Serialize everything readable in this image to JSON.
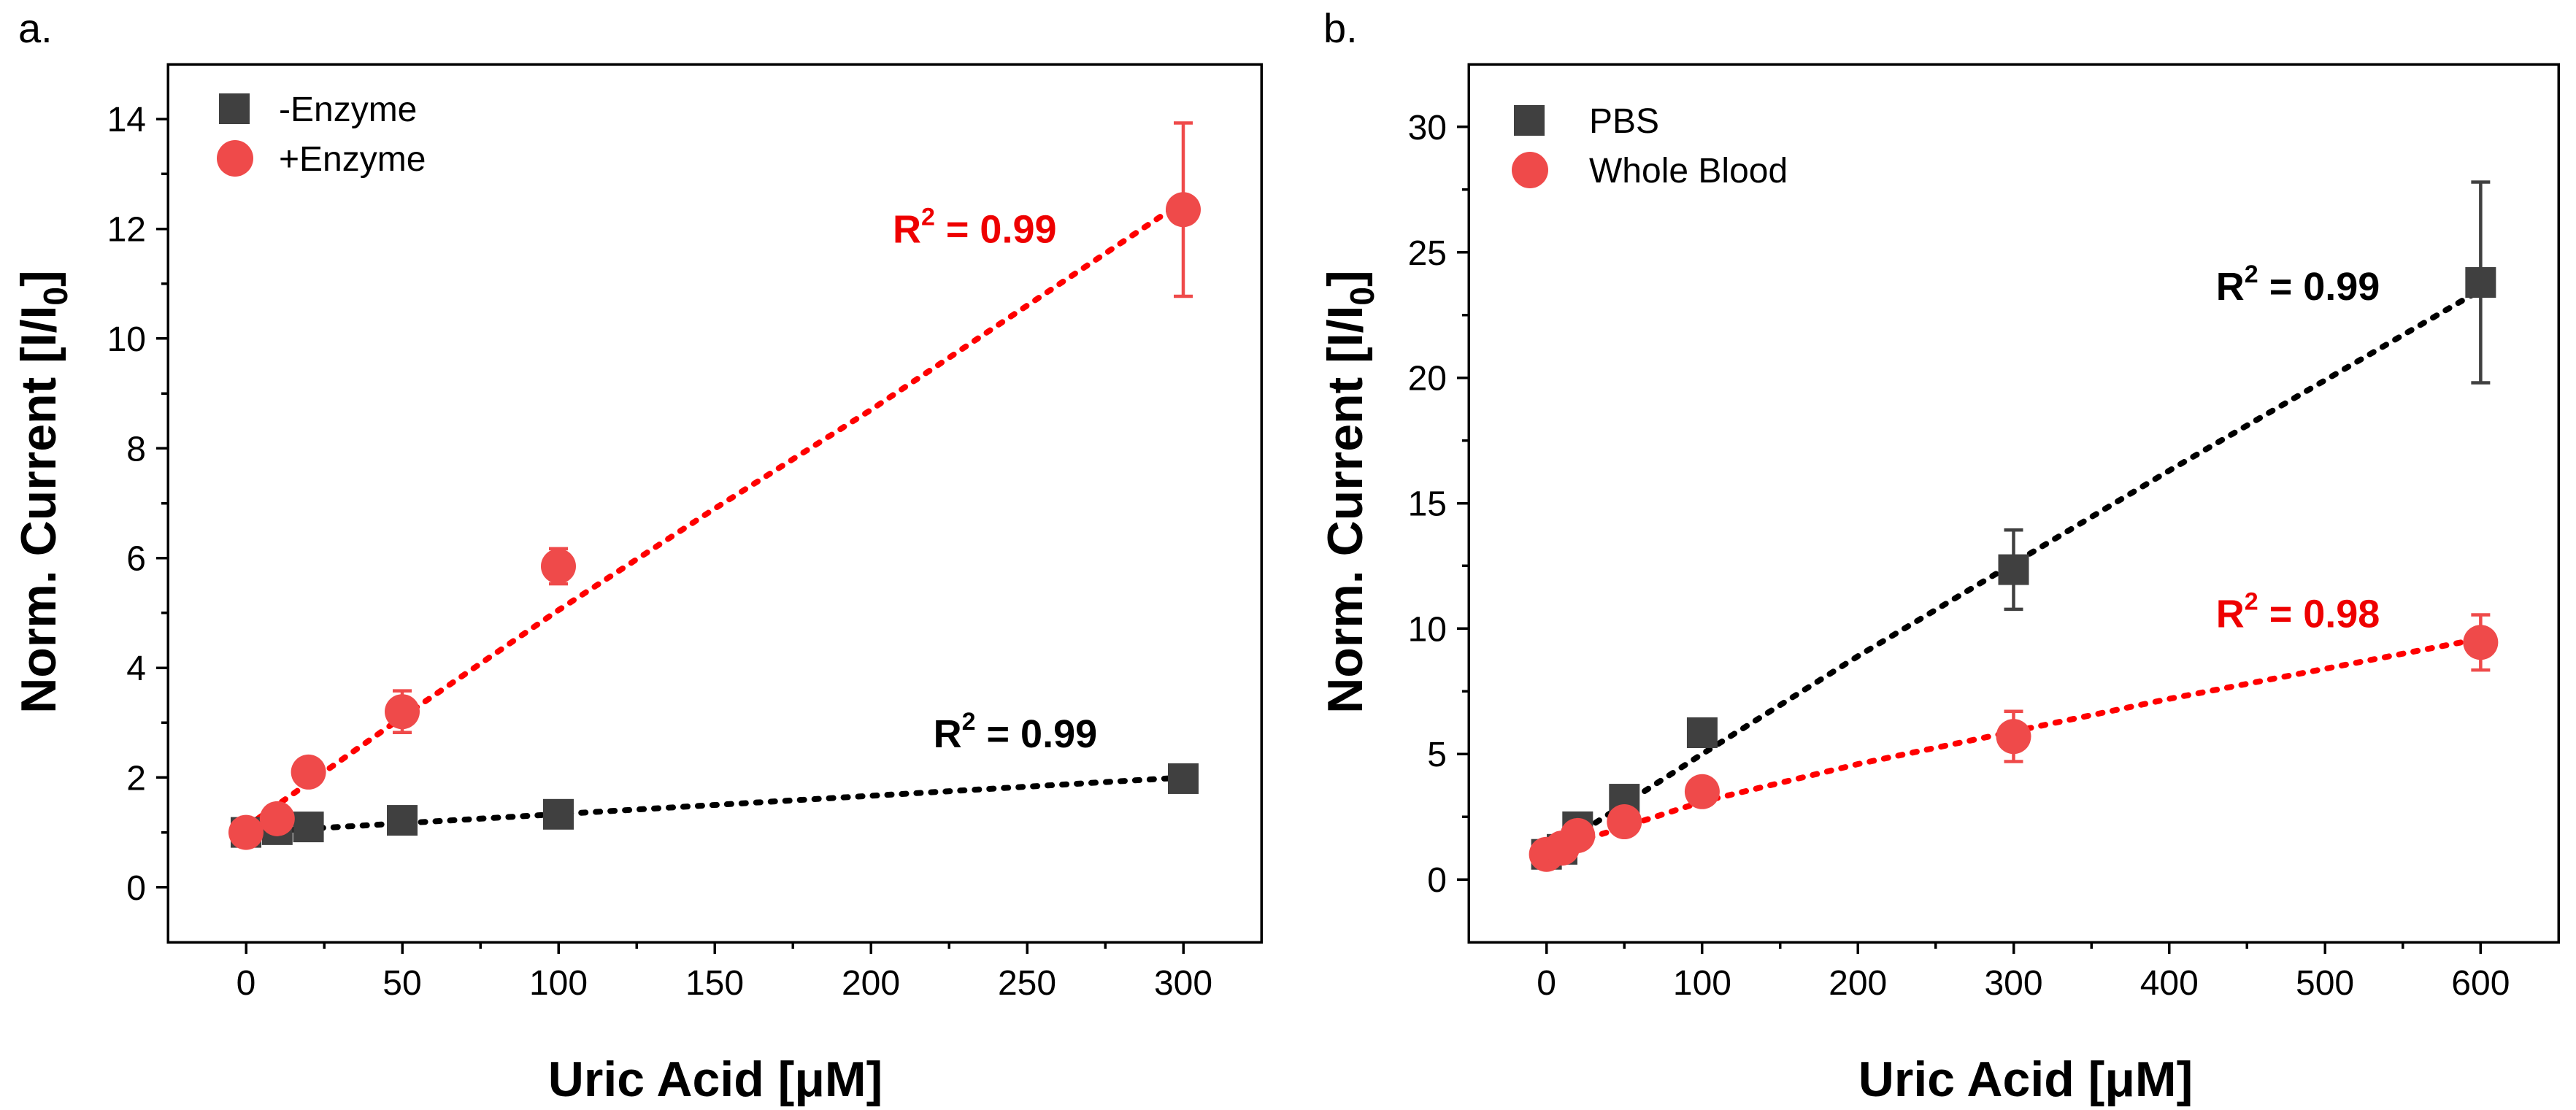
{
  "figure": {
    "colors": {
      "series_dark": "#404040",
      "series_red": "#ef4a4a",
      "fit_dark": "#000000",
      "fit_red": "#ff0000",
      "r2_dark": "#000000",
      "r2_red": "#ee0000"
    }
  },
  "chart_data": [
    {
      "panel_label": "a.",
      "type": "scatter",
      "xlabel": "Uric Acid [μM]",
      "ylabel": "Norm. Current [I/I",
      "ylabel_subscript": "0",
      "ylabel_suffix": "]",
      "xlim": [
        -25,
        325
      ],
      "ylim": [
        -1,
        15
      ],
      "x_ticks": [
        0,
        50,
        100,
        150,
        200,
        250,
        300
      ],
      "x_tick_labels": [
        "0",
        "50",
        "100",
        "150",
        "200",
        "250",
        "300"
      ],
      "y_ticks": [
        0,
        2,
        4,
        6,
        8,
        10,
        12,
        14
      ],
      "y_tick_labels": [
        "0",
        "2",
        "4",
        "6",
        "8",
        "10",
        "12",
        "14"
      ],
      "legend_position": "top-left",
      "series": [
        {
          "name": "-Enzyme",
          "marker": "square",
          "color_key": "series_dark",
          "fit_color_key": "fit_dark",
          "points": [
            {
              "x": 0,
              "y": 1.0,
              "err": 0.06
            },
            {
              "x": 10,
              "y": 1.05,
              "err": 0.08
            },
            {
              "x": 20,
              "y": 1.1,
              "err": 0.08
            },
            {
              "x": 50,
              "y": 1.22,
              "err": 0.1
            },
            {
              "x": 100,
              "y": 1.33,
              "err": 0.12
            },
            {
              "x": 300,
              "y": 1.98,
              "err": 0.15
            }
          ],
          "fit": [
            [
              0,
              1.0
            ],
            [
              300,
              2.0
            ]
          ],
          "r2_base": "R",
          "r2_sup": "2",
          "r2_rest": " = 0.99",
          "r2_at": [
            220,
            2.55
          ]
        },
        {
          "name": "+Enzyme",
          "marker": "circle",
          "color_key": "series_red",
          "fit_color_key": "fit_red",
          "points": [
            {
              "x": 0,
              "y": 1.0,
              "err": 0.1
            },
            {
              "x": 10,
              "y": 1.25,
              "err": 0.18
            },
            {
              "x": 20,
              "y": 2.1,
              "err": 0.22
            },
            {
              "x": 50,
              "y": 3.2,
              "err": 0.38
            },
            {
              "x": 100,
              "y": 5.85,
              "err": 0.32
            },
            {
              "x": 300,
              "y": 12.35,
              "err": 1.58
            }
          ],
          "fit": [
            [
              0,
              1.1
            ],
            [
              50,
              3.1
            ],
            [
              100,
              5.05
            ],
            [
              150,
              6.9
            ],
            [
              200,
              8.7
            ],
            [
              250,
              10.6
            ],
            [
              300,
              12.5
            ]
          ],
          "r2_base": "R",
          "r2_sup": "2",
          "r2_rest": " = 0.99",
          "r2_at": [
            207,
            11.75
          ]
        }
      ]
    },
    {
      "panel_label": "b.",
      "type": "scatter",
      "xlabel": "Uric Acid [μM]",
      "ylabel": "Norm. Current [I/I",
      "ylabel_subscript": "0",
      "ylabel_suffix": "]",
      "xlim": [
        -50,
        650
      ],
      "ylim": [
        -2.5,
        32.5
      ],
      "x_ticks": [
        0,
        100,
        200,
        300,
        400,
        500,
        600
      ],
      "x_tick_labels": [
        "0",
        "100",
        "200",
        "300",
        "400",
        "500",
        "600"
      ],
      "y_ticks": [
        0,
        5,
        10,
        15,
        20,
        25,
        30
      ],
      "y_tick_labels": [
        "0",
        "5",
        "10",
        "15",
        "20",
        "25",
        "30"
      ],
      "legend_position": "top-left",
      "series": [
        {
          "name": "PBS",
          "marker": "square",
          "color_key": "series_dark",
          "fit_color_key": "fit_dark",
          "points": [
            {
              "x": 0,
              "y": 1.0,
              "err": 0.15
            },
            {
              "x": 10,
              "y": 1.2,
              "err": 0.2
            },
            {
              "x": 20,
              "y": 2.1,
              "err": 0.4
            },
            {
              "x": 50,
              "y": 3.2,
              "err": 0.5
            },
            {
              "x": 100,
              "y": 5.85,
              "err": 0.4
            },
            {
              "x": 300,
              "y": 12.35,
              "err": 1.58
            },
            {
              "x": 600,
              "y": 23.8,
              "err": 4.0
            }
          ],
          "fit": [
            [
              0,
              1.0
            ],
            [
              100,
              5.0
            ],
            [
              200,
              8.9
            ],
            [
              300,
              12.6
            ],
            [
              400,
              16.3
            ],
            [
              500,
              19.9
            ],
            [
              600,
              23.5
            ]
          ],
          "r2_base": "R",
          "r2_sup": "2",
          "r2_rest": " = 0.99",
          "r2_at": [
            430,
            23.1
          ]
        },
        {
          "name": "Whole Blood",
          "marker": "circle",
          "color_key": "series_red",
          "fit_color_key": "fit_red",
          "points": [
            {
              "x": 0,
              "y": 1.0,
              "err": 0.3
            },
            {
              "x": 10,
              "y": 1.25,
              "err": 0.3
            },
            {
              "x": 20,
              "y": 1.75,
              "err": 0.3
            },
            {
              "x": 50,
              "y": 2.3,
              "err": 0.4
            },
            {
              "x": 100,
              "y": 3.5,
              "err": 0.5
            },
            {
              "x": 300,
              "y": 5.7,
              "err": 1.0
            },
            {
              "x": 600,
              "y": 9.45,
              "err": 1.1
            }
          ],
          "fit": [
            [
              0,
              1.1
            ],
            [
              100,
              3.1
            ],
            [
              200,
              4.6
            ],
            [
              300,
              5.9
            ],
            [
              400,
              7.2
            ],
            [
              500,
              8.4
            ],
            [
              600,
              9.6
            ]
          ],
          "r2_base": "R",
          "r2_sup": "2",
          "r2_rest": " = 0.98",
          "r2_at": [
            430,
            10.05
          ]
        }
      ]
    }
  ]
}
